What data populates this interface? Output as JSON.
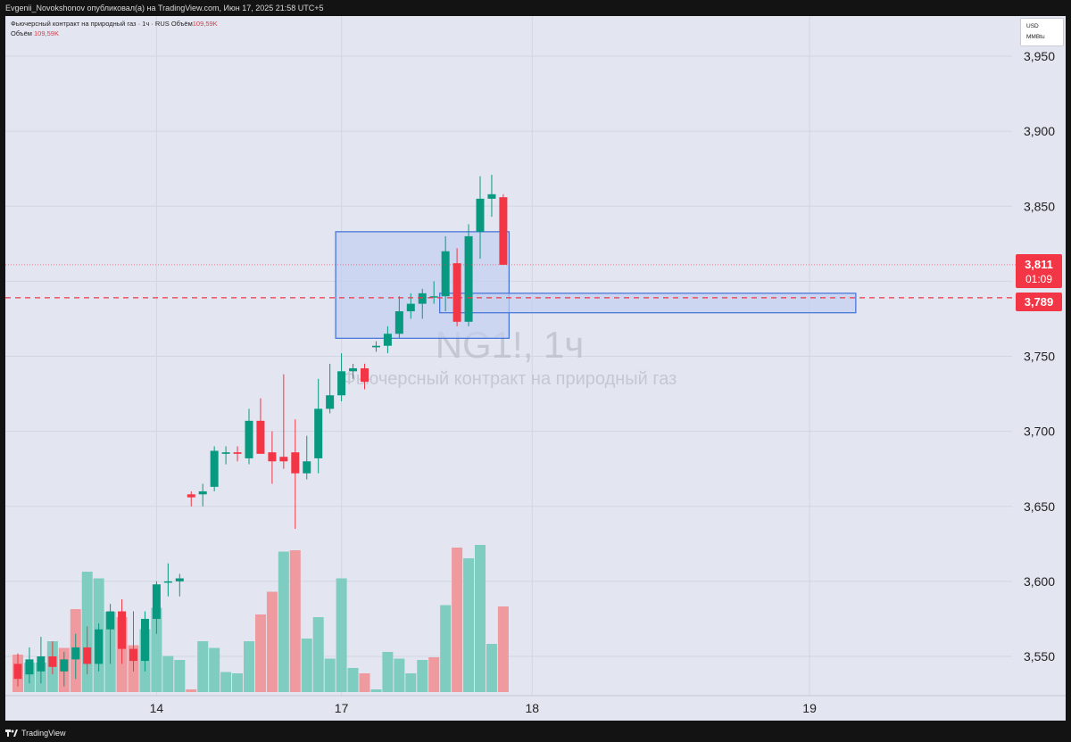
{
  "header": {
    "publisher_line": "Evgenii_Novokshonov опубликовал(а) на TradingView.com, Июн 17, 2025 21:58 UTC+5"
  },
  "legend": {
    "symbol_line": "Фьючерсный контракт на природный газ · 1ч · RUS",
    "volume_label": "Объём",
    "volume_value": "109,59K",
    "volume_line_label": "Объём",
    "volume_line_value": "109,59K"
  },
  "currency": {
    "currency": "USD",
    "unit": "MMBtu"
  },
  "watermark": {
    "symbol": "NG1!, 1ч",
    "name": "Фьючерсный контракт на природный газ"
  },
  "price_labels": {
    "last_price": "3,811",
    "countdown": "01:09",
    "level_price": "3,789"
  },
  "footer": {
    "brand": "TradingView"
  },
  "colors": {
    "up": "#089981",
    "down": "#f23645",
    "vol_up": "#7fcdc0",
    "vol_down": "#ee9a9f",
    "box_fill": "#c3cff0",
    "box_stroke": "#3f6fd8",
    "background": "#e3e6f0"
  },
  "chart_data": {
    "type": "candlestick",
    "ylim": [
      3.53,
      3.975
    ],
    "y_ticks": [
      "3,950",
      "3,900",
      "3,850",
      "3,800",
      "3,750",
      "3,700",
      "3,650",
      "3,600",
      "3,550"
    ],
    "y_tick_values": [
      3.95,
      3.9,
      3.85,
      3.8,
      3.75,
      3.7,
      3.65,
      3.6,
      3.55
    ],
    "x_ticks": [
      "14",
      "17",
      "18",
      "19"
    ],
    "x_tick_bar_index": [
      12,
      28,
      44.5,
      68.5
    ],
    "last_price": 3.811,
    "level_price": 3.789,
    "candles": [
      {
        "o": 3.545,
        "h": 3.552,
        "l": 3.53,
        "c": 3.535
      },
      {
        "o": 3.538,
        "h": 3.556,
        "l": 3.532,
        "c": 3.548
      },
      {
        "o": 3.54,
        "h": 3.563,
        "l": 3.532,
        "c": 3.55
      },
      {
        "o": 3.55,
        "h": 3.56,
        "l": 3.538,
        "c": 3.543
      },
      {
        "o": 3.54,
        "h": 3.553,
        "l": 3.53,
        "c": 3.548
      },
      {
        "o": 3.548,
        "h": 3.565,
        "l": 3.535,
        "c": 3.556
      },
      {
        "o": 3.556,
        "h": 3.57,
        "l": 3.538,
        "c": 3.545
      },
      {
        "o": 3.545,
        "h": 3.572,
        "l": 3.54,
        "c": 3.568
      },
      {
        "o": 3.568,
        "h": 3.585,
        "l": 3.545,
        "c": 3.58
      },
      {
        "o": 3.58,
        "h": 3.588,
        "l": 3.545,
        "c": 3.555
      },
      {
        "o": 3.555,
        "h": 3.58,
        "l": 3.54,
        "c": 3.547
      },
      {
        "o": 3.547,
        "h": 3.58,
        "l": 3.54,
        "c": 3.575
      },
      {
        "o": 3.575,
        "h": 3.6,
        "l": 3.565,
        "c": 3.598
      },
      {
        "o": 3.6,
        "h": 3.612,
        "l": 3.59,
        "c": 3.6
      },
      {
        "o": 3.6,
        "h": 3.605,
        "l": 3.59,
        "c": 3.602
      },
      {
        "o": 3.658,
        "h": 3.66,
        "l": 3.65,
        "c": 3.656
      },
      {
        "o": 3.658,
        "h": 3.665,
        "l": 3.65,
        "c": 3.66
      },
      {
        "o": 3.663,
        "h": 3.69,
        "l": 3.66,
        "c": 3.687
      },
      {
        "o": 3.685,
        "h": 3.69,
        "l": 3.678,
        "c": 3.686
      },
      {
        "o": 3.686,
        "h": 3.69,
        "l": 3.68,
        "c": 3.685
      },
      {
        "o": 3.682,
        "h": 3.715,
        "l": 3.678,
        "c": 3.707
      },
      {
        "o": 3.707,
        "h": 3.722,
        "l": 3.685,
        "c": 3.685
      },
      {
        "o": 3.686,
        "h": 3.7,
        "l": 3.665,
        "c": 3.68
      },
      {
        "o": 3.683,
        "h": 3.738,
        "l": 3.675,
        "c": 3.68
      },
      {
        "o": 3.686,
        "h": 3.708,
        "l": 3.635,
        "c": 3.672
      },
      {
        "o": 3.672,
        "h": 3.697,
        "l": 3.668,
        "c": 3.68
      },
      {
        "o": 3.682,
        "h": 3.735,
        "l": 3.672,
        "c": 3.715
      },
      {
        "o": 3.715,
        "h": 3.745,
        "l": 3.712,
        "c": 3.724
      },
      {
        "o": 3.724,
        "h": 3.752,
        "l": 3.72,
        "c": 3.74
      },
      {
        "o": 3.74,
        "h": 3.745,
        "l": 3.735,
        "c": 3.742
      },
      {
        "o": 3.742,
        "h": 3.745,
        "l": 3.728,
        "c": 3.733
      },
      {
        "o": 3.756,
        "h": 3.76,
        "l": 3.753,
        "c": 3.757
      },
      {
        "o": 3.757,
        "h": 3.77,
        "l": 3.752,
        "c": 3.765
      },
      {
        "o": 3.765,
        "h": 3.79,
        "l": 3.762,
        "c": 3.78
      },
      {
        "o": 3.78,
        "h": 3.792,
        "l": 3.775,
        "c": 3.785
      },
      {
        "o": 3.785,
        "h": 3.795,
        "l": 3.775,
        "c": 3.792
      },
      {
        "o": 3.79,
        "h": 3.8,
        "l": 3.785,
        "c": 3.79
      },
      {
        "o": 3.79,
        "h": 3.83,
        "l": 3.78,
        "c": 3.82
      },
      {
        "o": 3.812,
        "h": 3.822,
        "l": 3.77,
        "c": 3.773
      },
      {
        "o": 3.773,
        "h": 3.838,
        "l": 3.77,
        "c": 3.83
      },
      {
        "o": 3.833,
        "h": 3.87,
        "l": 3.815,
        "c": 3.855
      },
      {
        "o": 3.855,
        "h": 3.871,
        "l": 3.843,
        "c": 3.858
      },
      {
        "o": 3.856,
        "h": 3.858,
        "l": 3.811,
        "c": 3.811
      }
    ],
    "volume": [
      {
        "v": 0.28,
        "d": "down"
      },
      {
        "v": 0.22,
        "d": "up"
      },
      {
        "v": 0.22,
        "d": "up"
      },
      {
        "v": 0.38,
        "d": "up"
      },
      {
        "v": 0.33,
        "d": "down"
      },
      {
        "v": 0.62,
        "d": "down"
      },
      {
        "v": 0.9,
        "d": "up"
      },
      {
        "v": 0.85,
        "d": "up"
      },
      {
        "v": 0.6,
        "d": "up"
      },
      {
        "v": 0.56,
        "d": "down"
      },
      {
        "v": 0.35,
        "d": "down"
      },
      {
        "v": 0.47,
        "d": "up"
      },
      {
        "v": 0.63,
        "d": "up"
      },
      {
        "v": 0.27,
        "d": "up"
      },
      {
        "v": 0.24,
        "d": "up"
      },
      {
        "v": 0.02,
        "d": "down"
      },
      {
        "v": 0.38,
        "d": "up"
      },
      {
        "v": 0.33,
        "d": "up"
      },
      {
        "v": 0.15,
        "d": "up"
      },
      {
        "v": 0.14,
        "d": "up"
      },
      {
        "v": 0.38,
        "d": "up"
      },
      {
        "v": 0.58,
        "d": "down"
      },
      {
        "v": 0.75,
        "d": "down"
      },
      {
        "v": 1.05,
        "d": "up"
      },
      {
        "v": 1.06,
        "d": "down"
      },
      {
        "v": 0.4,
        "d": "up"
      },
      {
        "v": 0.56,
        "d": "up"
      },
      {
        "v": 0.25,
        "d": "up"
      },
      {
        "v": 0.85,
        "d": "up"
      },
      {
        "v": 0.18,
        "d": "up"
      },
      {
        "v": 0.14,
        "d": "down"
      },
      {
        "v": 0.02,
        "d": "up"
      },
      {
        "v": 0.3,
        "d": "up"
      },
      {
        "v": 0.25,
        "d": "up"
      },
      {
        "v": 0.14,
        "d": "up"
      },
      {
        "v": 0.24,
        "d": "up"
      },
      {
        "v": 0.26,
        "d": "down"
      },
      {
        "v": 0.65,
        "d": "up"
      },
      {
        "v": 1.08,
        "d": "down"
      },
      {
        "v": 1.0,
        "d": "up"
      },
      {
        "v": 1.1,
        "d": "up"
      },
      {
        "v": 0.36,
        "d": "up"
      },
      {
        "v": 0.64,
        "d": "down"
      }
    ],
    "boxes": [
      {
        "x0": 27.5,
        "x1": 42.5,
        "y_top": 3.833,
        "y_bottom": 3.762
      },
      {
        "x0": 36.5,
        "x1": 72.5,
        "y_top": 3.792,
        "y_bottom": 3.779
      }
    ]
  }
}
